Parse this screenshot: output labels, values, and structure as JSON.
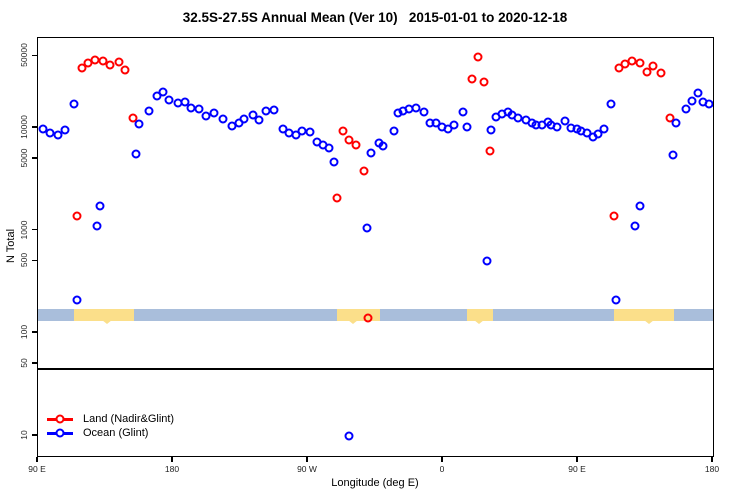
{
  "title": "32.5S-27.5S Annual Mean (Ver 10)   2015-01-01 to 2020-12-18",
  "legend": {
    "entries": [
      {
        "label": "Land (Nadir&Glint)",
        "color": "#ff0000"
      },
      {
        "label": "Ocean (Glint)",
        "color": "#0000ff"
      }
    ]
  },
  "chart_data": {
    "type": "scatter",
    "title": "32.5S-27.5S Annual Mean (Ver 10)   2015-01-01 to 2020-12-18",
    "xlabel": "Longitude (deg E)",
    "ylabel": "N Total",
    "x_range": [
      90,
      540
    ],
    "y_scale": "log",
    "y_range": [
      10,
      50000
    ],
    "x_ticks": [
      {
        "pos": 90,
        "label": "90 E"
      },
      {
        "pos": 180,
        "label": "180"
      },
      {
        "pos": 270,
        "label": "90 W"
      },
      {
        "pos": 360,
        "label": "0"
      },
      {
        "pos": 450,
        "label": "90 E"
      },
      {
        "pos": 540,
        "label": "180"
      }
    ],
    "y_ticks": [
      {
        "value": 50000,
        "label": "50000"
      },
      {
        "value": 10000,
        "label": "10000"
      },
      {
        "value": 5000,
        "label": "5000"
      },
      {
        "value": 1000,
        "label": "1000"
      },
      {
        "value": 500,
        "label": "500"
      },
      {
        "value": 100,
        "label": "100"
      },
      {
        "value": 50,
        "label": "50"
      },
      {
        "value": 10,
        "label": "10"
      }
    ],
    "reference_line_value": 45,
    "land_ocean_strip": {
      "ocean_color": "#a9bedb",
      "land_color": "#fbdf8a",
      "band_values": [
        132,
        172
      ],
      "land_segments": [
        {
          "from": 114,
          "to": 154,
          "bump": 136
        },
        {
          "from": 289,
          "to": 318,
          "bump": 300
        },
        {
          "from": 376,
          "to": 393,
          "bump": 384
        },
        {
          "from": 474,
          "to": 514,
          "bump": 497
        }
      ]
    },
    "series": [
      {
        "name": "Land (Nadir&Glint)",
        "color": "#ff0000",
        "points": [
          [
            116,
            1400
          ],
          [
            119,
            38000
          ],
          [
            123,
            43000
          ],
          [
            128,
            45500
          ],
          [
            133,
            45000
          ],
          [
            138,
            41000
          ],
          [
            144,
            43500
          ],
          [
            148,
            36500
          ],
          [
            153,
            12500
          ],
          [
            289,
            2100
          ],
          [
            293,
            9400
          ],
          [
            297,
            7600
          ],
          [
            302,
            6800
          ],
          [
            307,
            3800
          ],
          [
            310,
            140
          ],
          [
            379,
            30000
          ],
          [
            383,
            49000
          ],
          [
            387,
            28000
          ],
          [
            391,
            6000
          ],
          [
            474,
            1400
          ],
          [
            477,
            38500
          ],
          [
            481,
            42500
          ],
          [
            486,
            45000
          ],
          [
            491,
            43000
          ],
          [
            496,
            35000
          ],
          [
            500,
            40500
          ],
          [
            505,
            34000
          ],
          [
            511,
            12500
          ]
        ]
      },
      {
        "name": "Ocean (Glint)",
        "color": "#0000ff",
        "points": [
          [
            93,
            9700
          ],
          [
            98,
            9000
          ],
          [
            103,
            8500
          ],
          [
            108,
            9500
          ],
          [
            114,
            17000
          ],
          [
            116,
            210
          ],
          [
            129,
            1100
          ],
          [
            131,
            1750
          ],
          [
            155,
            5600
          ],
          [
            157,
            11000
          ],
          [
            164,
            14800
          ],
          [
            169,
            20500
          ],
          [
            173,
            22400
          ],
          [
            177,
            18700
          ],
          [
            183,
            17700
          ],
          [
            188,
            18000
          ],
          [
            192,
            15700
          ],
          [
            197,
            15200
          ],
          [
            202,
            13000
          ],
          [
            207,
            13900
          ],
          [
            213,
            12300
          ],
          [
            219,
            10400
          ],
          [
            224,
            11300
          ],
          [
            227,
            12100
          ],
          [
            233,
            13300
          ],
          [
            237,
            11900
          ],
          [
            242,
            14600
          ],
          [
            247,
            14900
          ],
          [
            253,
            9700
          ],
          [
            257,
            8900
          ],
          [
            262,
            8500
          ],
          [
            266,
            9400
          ],
          [
            271,
            9100
          ],
          [
            276,
            7300
          ],
          [
            280,
            6800
          ],
          [
            284,
            6400
          ],
          [
            287,
            4700
          ],
          [
            297,
            10
          ],
          [
            309,
            1050
          ],
          [
            312,
            5700
          ],
          [
            317,
            7100
          ],
          [
            320,
            6700
          ],
          [
            327,
            9400
          ],
          [
            330,
            14000
          ],
          [
            333,
            14600
          ],
          [
            337,
            15200
          ],
          [
            342,
            15700
          ],
          [
            347,
            14400
          ],
          [
            351,
            11300
          ],
          [
            355,
            11300
          ],
          [
            359,
            10300
          ],
          [
            363,
            9700
          ],
          [
            367,
            10700
          ],
          [
            373,
            14200
          ],
          [
            376,
            10300
          ],
          [
            389,
            500
          ],
          [
            392,
            9600
          ],
          [
            395,
            12900
          ],
          [
            399,
            13600
          ],
          [
            403,
            14200
          ],
          [
            406,
            13300
          ],
          [
            410,
            12600
          ],
          [
            415,
            12000
          ],
          [
            419,
            11300
          ],
          [
            422,
            10800
          ],
          [
            426,
            10600
          ],
          [
            430,
            11500
          ],
          [
            432,
            10600
          ],
          [
            436,
            10200
          ],
          [
            441,
            11600
          ],
          [
            445,
            10000
          ],
          [
            449,
            9700
          ],
          [
            452,
            9400
          ],
          [
            456,
            8900
          ],
          [
            460,
            8200
          ],
          [
            463,
            8700
          ],
          [
            467,
            9700
          ],
          [
            472,
            17000
          ],
          [
            475,
            210
          ],
          [
            488,
            1100
          ],
          [
            491,
            1750
          ],
          [
            513,
            5500
          ],
          [
            515,
            11200
          ],
          [
            522,
            15200
          ],
          [
            526,
            18300
          ],
          [
            530,
            21700
          ],
          [
            533,
            18000
          ],
          [
            537,
            17000
          ]
        ]
      }
    ]
  }
}
